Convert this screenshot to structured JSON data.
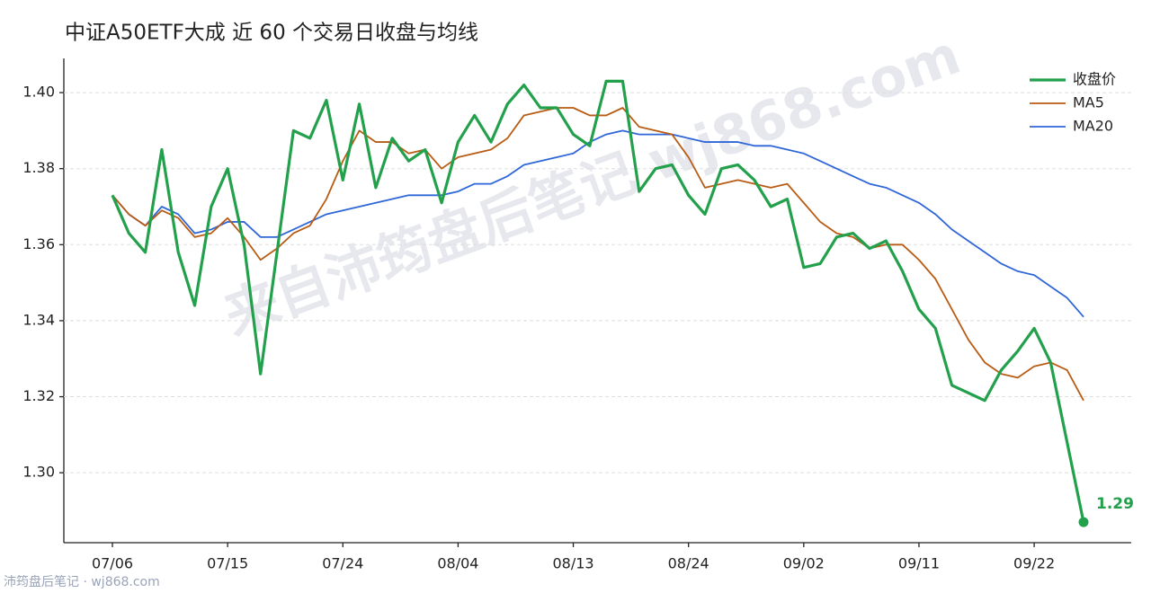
{
  "chart_data": {
    "type": "line",
    "title": "中证A50ETF大成 近 60 个交易日收盘与均线",
    "watermark": "来自沛筠盘后笔记 wj868.com",
    "footer": "沛筠盘后笔记 · wj868.com",
    "categories": [
      "07/06",
      null,
      null,
      null,
      null,
      null,
      null,
      "07/15",
      null,
      null,
      null,
      null,
      null,
      null,
      "07/24",
      null,
      null,
      null,
      null,
      null,
      null,
      "08/04",
      null,
      null,
      null,
      null,
      null,
      null,
      "08/13",
      null,
      null,
      null,
      null,
      null,
      null,
      "08/24",
      null,
      null,
      null,
      null,
      null,
      null,
      "09/02",
      null,
      null,
      null,
      null,
      null,
      null,
      "09/11",
      null,
      null,
      null,
      null,
      null,
      null,
      "09/22",
      null,
      null,
      null
    ],
    "series": [
      {
        "name": "收盘价",
        "color": "#22a04b",
        "width": 3.2,
        "values": [
          1.373,
          1.363,
          1.358,
          1.385,
          1.358,
          1.344,
          1.37,
          1.38,
          1.36,
          1.326,
          1.358,
          1.39,
          1.388,
          1.398,
          1.377,
          1.397,
          1.375,
          1.388,
          1.382,
          1.385,
          1.371,
          1.387,
          1.394,
          1.387,
          1.397,
          1.402,
          1.396,
          1.396,
          1.389,
          1.386,
          1.403,
          1.403,
          1.374,
          1.38,
          1.381,
          1.373,
          1.368,
          1.38,
          1.381,
          1.377,
          1.37,
          1.372,
          1.354,
          1.355,
          1.362,
          1.363,
          1.359,
          1.361,
          1.353,
          1.343,
          1.338,
          1.323,
          1.321,
          1.319,
          1.327,
          1.332,
          1.338,
          1.329,
          1.308,
          1.287
        ],
        "value_labels": [
          null,
          null,
          null,
          null,
          null,
          null,
          null,
          null,
          null,
          null,
          null,
          null,
          null,
          null,
          null,
          null,
          null,
          null,
          null,
          null,
          null,
          null,
          null,
          null,
          null,
          null,
          null,
          null,
          null,
          null,
          null,
          null,
          null,
          null,
          null,
          null,
          null,
          null,
          null,
          null,
          null,
          null,
          null,
          null,
          null,
          null,
          null,
          null,
          null,
          null,
          null,
          null,
          null,
          null,
          null,
          null,
          null,
          null,
          null,
          "1.29"
        ]
      },
      {
        "name": "MA5",
        "color": "#b85c14",
        "width": 1.8,
        "values": [
          1.373,
          1.368,
          1.365,
          1.369,
          1.367,
          1.362,
          1.363,
          1.367,
          1.362,
          1.356,
          1.359,
          1.363,
          1.365,
          1.372,
          1.382,
          1.39,
          1.387,
          1.387,
          1.384,
          1.385,
          1.38,
          1.383,
          1.384,
          1.385,
          1.388,
          1.394,
          1.395,
          1.396,
          1.396,
          1.394,
          1.394,
          1.396,
          1.391,
          1.39,
          1.389,
          1.383,
          1.375,
          1.376,
          1.377,
          1.376,
          1.375,
          1.376,
          1.371,
          1.366,
          1.363,
          1.362,
          1.359,
          1.36,
          1.36,
          1.356,
          1.351,
          1.343,
          1.335,
          1.329,
          1.326,
          1.325,
          1.328,
          1.329,
          1.327,
          1.319
        ]
      },
      {
        "name": "MA20",
        "color": "#2f66d8",
        "width": 1.8,
        "values": [
          1.373,
          1.368,
          1.365,
          1.37,
          1.368,
          1.363,
          1.364,
          1.366,
          1.366,
          1.362,
          1.362,
          1.364,
          1.366,
          1.368,
          1.369,
          1.37,
          1.371,
          1.372,
          1.373,
          1.373,
          1.373,
          1.374,
          1.376,
          1.376,
          1.378,
          1.381,
          1.382,
          1.383,
          1.384,
          1.387,
          1.389,
          1.39,
          1.389,
          1.389,
          1.389,
          1.388,
          1.387,
          1.387,
          1.387,
          1.386,
          1.386,
          1.385,
          1.384,
          1.382,
          1.38,
          1.378,
          1.376,
          1.375,
          1.373,
          1.371,
          1.368,
          1.364,
          1.361,
          1.358,
          1.355,
          1.353,
          1.352,
          1.349,
          1.346,
          1.341
        ]
      }
    ],
    "ylim": [
      1.2816,
      1.409
    ],
    "yticks": [
      {
        "value": 1.3,
        "label": "1.30"
      },
      {
        "value": 1.32,
        "label": "1.32"
      },
      {
        "value": 1.34,
        "label": "1.34"
      },
      {
        "value": 1.36,
        "label": "1.36"
      },
      {
        "value": 1.38,
        "label": "1.38"
      },
      {
        "value": 1.4,
        "label": "1.40"
      }
    ],
    "grid": true,
    "legend": "upper right"
  }
}
